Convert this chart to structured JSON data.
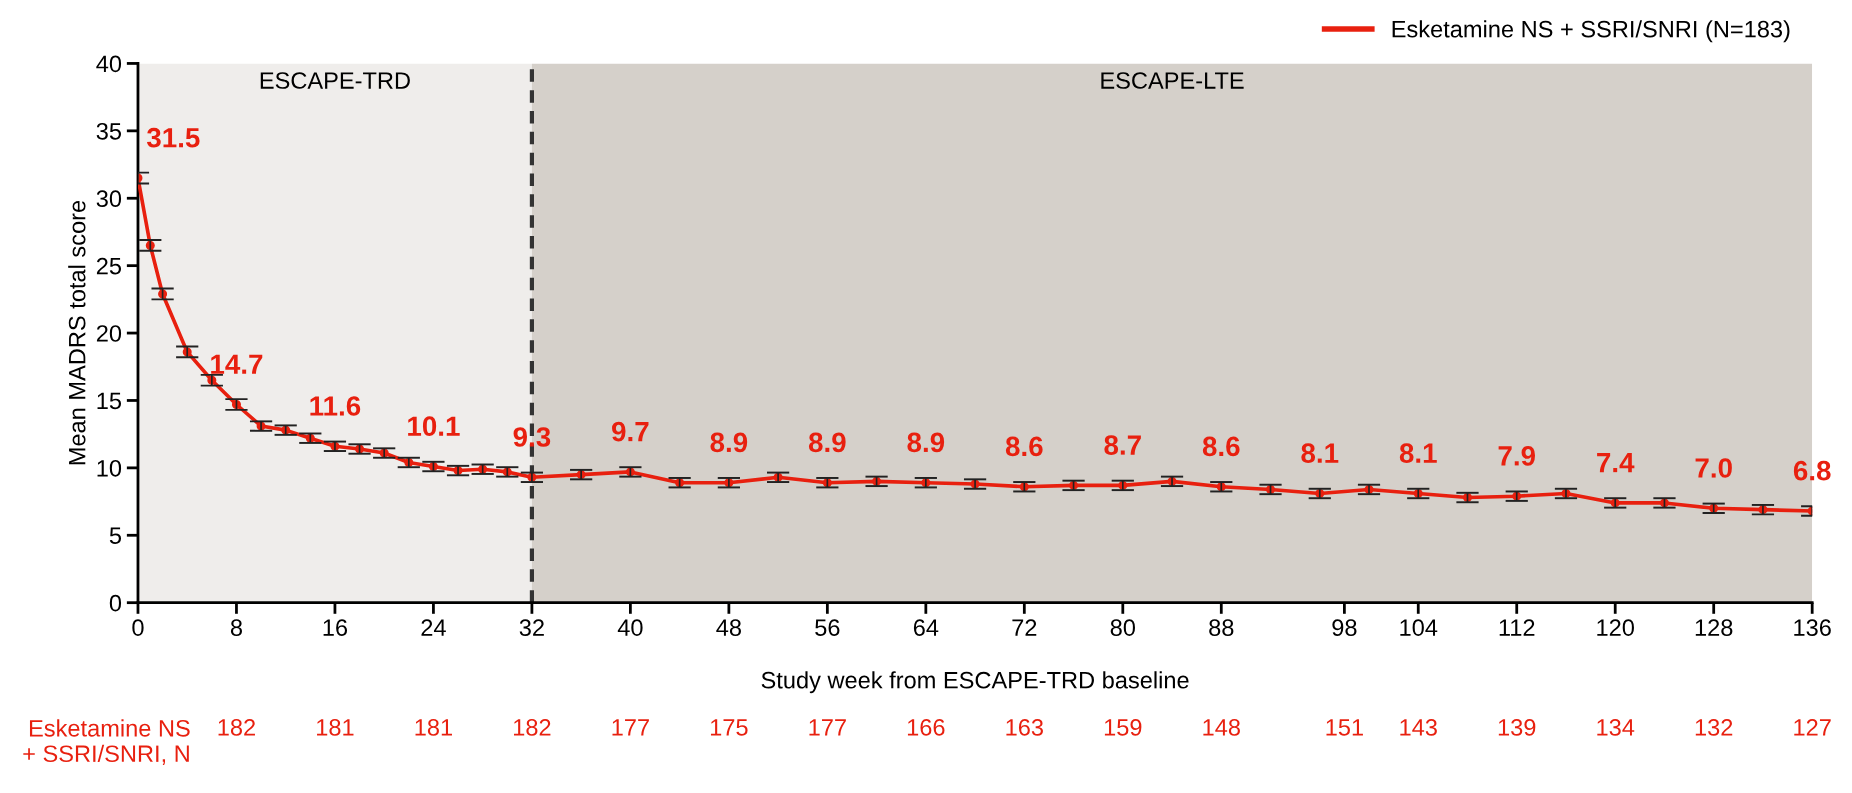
{
  "chart_data": {
    "type": "line",
    "ylabel": "Mean MADRS total score",
    "xlabel": "Study week from ESCAPE-TRD baseline",
    "x": [
      0,
      1,
      2,
      4,
      6,
      8,
      10,
      12,
      14,
      16,
      18,
      20,
      22,
      24,
      26,
      28,
      30,
      32,
      36,
      40,
      44,
      48,
      52,
      56,
      60,
      64,
      68,
      72,
      76,
      80,
      84,
      88,
      92,
      96,
      100,
      104,
      108,
      112,
      116,
      120,
      124,
      128,
      132,
      136
    ],
    "series": [
      {
        "name": "Esketamine NS + SSRI/SNRI (N=183)",
        "color": "#e8200f",
        "values": [
          31.5,
          26.5,
          22.9,
          18.6,
          16.5,
          14.7,
          13.1,
          12.8,
          12.2,
          11.6,
          11.4,
          11.1,
          10.4,
          10.1,
          9.8,
          9.9,
          9.7,
          9.3,
          9.5,
          9.7,
          8.9,
          8.9,
          9.3,
          8.9,
          9.0,
          8.9,
          8.8,
          8.6,
          8.7,
          8.7,
          9.0,
          8.6,
          8.4,
          8.1,
          8.4,
          8.1,
          7.8,
          7.9,
          8.1,
          7.4,
          7.4,
          7.0,
          6.9,
          6.8
        ],
        "errors": [
          0.4,
          0.4,
          0.4,
          0.4,
          0.4,
          0.4,
          0.35,
          0.35,
          0.35,
          0.35,
          0.35,
          0.35,
          0.35,
          0.35,
          0.35,
          0.35,
          0.35,
          0.35,
          0.35,
          0.35,
          0.35,
          0.35,
          0.35,
          0.35,
          0.35,
          0.35,
          0.35,
          0.35,
          0.35,
          0.35,
          0.35,
          0.35,
          0.35,
          0.35,
          0.35,
          0.35,
          0.35,
          0.35,
          0.35,
          0.35,
          0.35,
          0.35,
          0.35,
          0.35
        ],
        "value_labels": [
          "31.5",
          null,
          null,
          null,
          null,
          "14.7",
          null,
          null,
          null,
          "11.6",
          null,
          null,
          null,
          "10.1",
          null,
          null,
          null,
          "9.3",
          null,
          "9.7",
          null,
          "8.9",
          null,
          "8.9",
          null,
          "8.9",
          null,
          "8.6",
          null,
          "8.7",
          null,
          "8.6",
          null,
          "8.1",
          null,
          "8.1",
          null,
          "7.9",
          null,
          "7.4",
          null,
          "7.0",
          null,
          "6.8"
        ]
      }
    ],
    "xlim": [
      0,
      136
    ],
    "xticks": [
      0,
      8,
      16,
      24,
      32,
      40,
      48,
      56,
      64,
      72,
      80,
      88,
      98,
      104,
      112,
      120,
      128,
      136
    ],
    "ylim": [
      0,
      40
    ],
    "yticks": [
      0,
      5,
      10,
      15,
      20,
      25,
      30,
      35,
      40
    ],
    "bands": [
      {
        "axis": "x",
        "from": 0,
        "to": 32,
        "label": "ESCAPE-TRD",
        "color": "#efedeb"
      },
      {
        "axis": "x",
        "from": 32,
        "to": 136,
        "label": "ESCAPE-LTE",
        "color": "#d5d0ca"
      }
    ],
    "ref_lines": [
      {
        "axis": "x",
        "value": 32,
        "label": null,
        "color": "#333333",
        "line_style": "dashed"
      }
    ],
    "annotations": [
      "Esketamine NS\n+ SSRI/SNRI, N",
      "182",
      "181",
      "181",
      "182",
      "177",
      "175",
      "177",
      "166",
      "163",
      "159",
      "148",
      "151",
      "143",
      "139",
      "134",
      "132",
      "127"
    ],
    "marker": "circle",
    "line_style": "solid",
    "legend": "top right",
    "grid": false
  }
}
